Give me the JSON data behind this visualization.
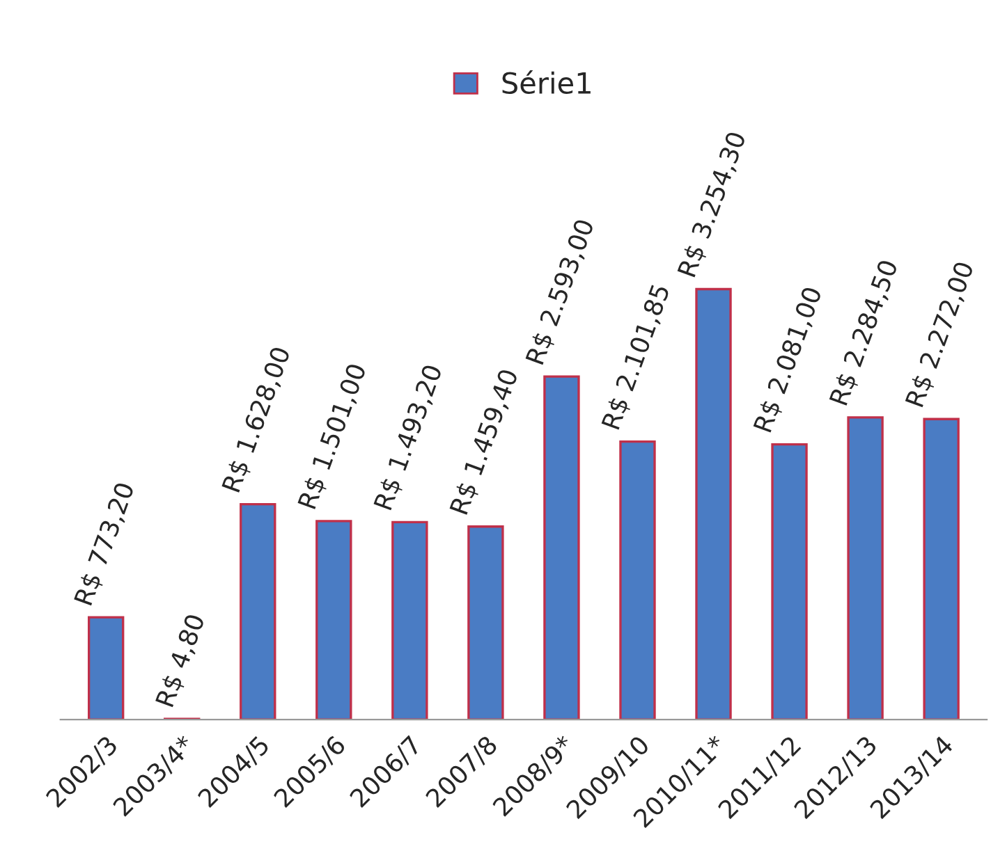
{
  "chart_data": {
    "type": "bar",
    "categories": [
      "2002/3",
      "2003/4*",
      "2004/5",
      "2005/6",
      "2006/7",
      "2007/8",
      "2008/9*",
      "2009/10",
      "2010/11*",
      "2011/12",
      "2012/13",
      "2013/14"
    ],
    "series": [
      {
        "name": "Série1",
        "color": "#4a7cc4",
        "values": [
          773.2,
          4.8,
          1628.0,
          1501.0,
          1493.2,
          1459.4,
          2593.0,
          2101.85,
          3254.3,
          2081.0,
          2284.5,
          2272.0
        ],
        "value_labels": [
          "R$ 773,20",
          "R$ 4,80",
          "R$ 1.628,00",
          "R$ 1.501,00",
          "R$ 1.493,20",
          "R$ 1.459,40",
          "R$ 2.593,00",
          "R$ 2.101,85",
          "R$ 3.254,30",
          "R$ 2.081,00",
          "R$ 2.284,50",
          "R$ 2.272,00"
        ]
      }
    ],
    "legend": "top",
    "grid": false
  }
}
